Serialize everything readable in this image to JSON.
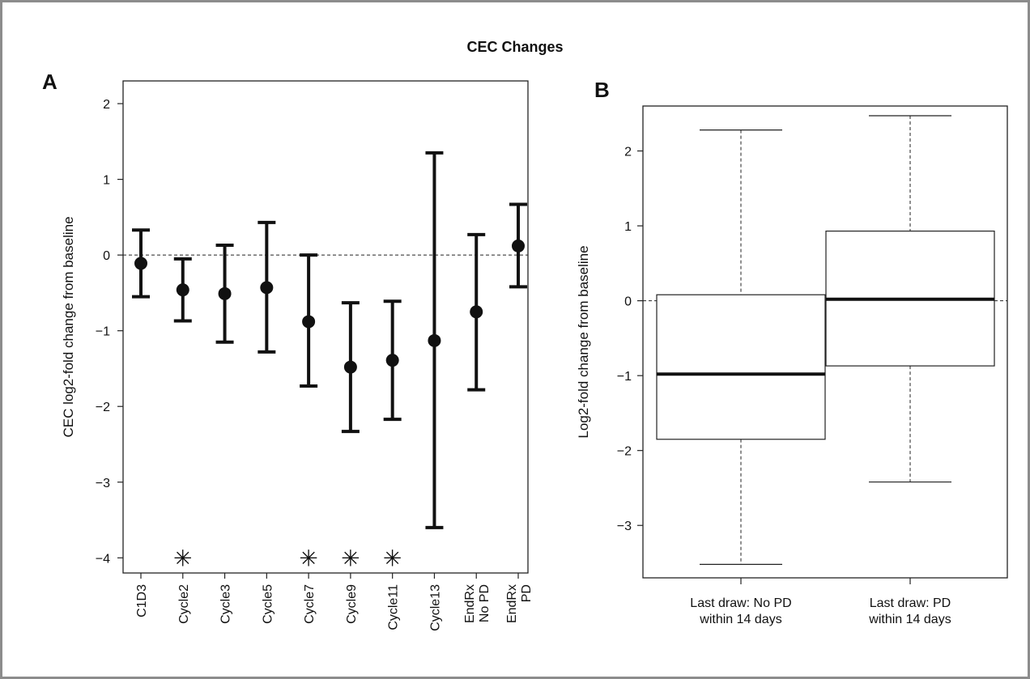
{
  "figure": {
    "title": "CEC Changes"
  },
  "chart_data": [
    {
      "panel": "A",
      "type": "errorbar",
      "ylabel": "CEC log2-fold change from baseline",
      "ylim": [
        -4.2,
        2.3
      ],
      "yticks": [
        -4,
        -3,
        -2,
        -1,
        0,
        1,
        2
      ],
      "ytick_labels": [
        "−4",
        "−3",
        "−2",
        "−1",
        "0",
        "1",
        "2"
      ],
      "reference_line_y": 0,
      "categories": [
        {
          "label": "C1D3",
          "lines": [
            "C1D3"
          ]
        },
        {
          "label": "Cycle2",
          "lines": [
            "Cycle2"
          ]
        },
        {
          "label": "Cycle3",
          "lines": [
            "Cycle3"
          ]
        },
        {
          "label": "Cycle5",
          "lines": [
            "Cycle5"
          ]
        },
        {
          "label": "Cycle7",
          "lines": [
            "Cycle7"
          ]
        },
        {
          "label": "Cycle9",
          "lines": [
            "Cycle9"
          ]
        },
        {
          "label": "Cycle11",
          "lines": [
            "Cycle11"
          ]
        },
        {
          "label": "Cycle13",
          "lines": [
            "Cycle13"
          ]
        },
        {
          "label": "EndRx No PD",
          "lines": [
            "EndRx",
            "No PD"
          ]
        },
        {
          "label": "EndRx PD",
          "lines": [
            "EndRx",
            "PD"
          ]
        }
      ],
      "estimates": [
        -0.11,
        -0.46,
        -0.51,
        -0.43,
        -0.88,
        -1.48,
        -1.39,
        -1.13,
        -0.75,
        0.12
      ],
      "lower": [
        -0.55,
        -0.87,
        -1.15,
        -1.28,
        -1.73,
        -2.33,
        -2.17,
        -3.6,
        -1.78,
        -0.42
      ],
      "upper": [
        0.33,
        -0.05,
        0.13,
        0.43,
        0.0,
        -0.63,
        -0.61,
        1.35,
        0.27,
        0.67
      ],
      "significance_marker": "✳",
      "significance_y": -4,
      "significant": [
        false,
        true,
        false,
        false,
        true,
        true,
        true,
        false,
        false,
        false
      ]
    },
    {
      "panel": "B",
      "type": "boxplot",
      "ylabel": "Log2-fold change from baseline",
      "ylim": [
        -3.7,
        2.6
      ],
      "yticks": [
        -3,
        -2,
        -1,
        0,
        1,
        2
      ],
      "ytick_labels": [
        "−3",
        "−2",
        "−1",
        "0",
        "1",
        "2"
      ],
      "reference_line_y": 0,
      "boxes": [
        {
          "label": "Last draw: No PD within 14 days",
          "lines": [
            "Last draw: No PD",
            "within 14 days"
          ],
          "whisker_low": -3.52,
          "q1": -1.85,
          "median": -0.98,
          "q3": 0.08,
          "whisker_high": 2.28
        },
        {
          "label": "Last draw: PD within 14 days",
          "lines": [
            "Last draw: PD",
            "within 14 days"
          ],
          "whisker_low": -2.42,
          "q1": -0.87,
          "median": 0.02,
          "q3": 0.93,
          "whisker_high": 2.47
        }
      ]
    }
  ]
}
